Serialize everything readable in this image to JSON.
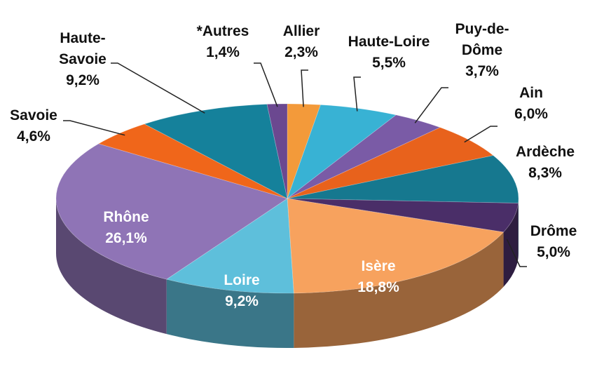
{
  "chart_data": {
    "type": "pie",
    "categories": [
      "Allier",
      "Haute-Loire",
      "Puy-de-Dôme",
      "Ain",
      "Ardèche",
      "Drôme",
      "Isère",
      "Loire",
      "Rhône",
      "Savoie",
      "Haute-Savoie",
      "*Autres"
    ],
    "values": [
      2.3,
      5.5,
      3.7,
      6.0,
      8.3,
      5.0,
      18.8,
      9.2,
      26.1,
      4.6,
      9.2,
      1.4
    ],
    "value_labels": [
      "2,3%",
      "5,5%",
      "3,7%",
      "6,0%",
      "8,3%",
      "5,0%",
      "18,8%",
      "9,2%",
      "26,1%",
      "4,6%",
      "9,2%",
      "1,4%"
    ],
    "colors": [
      "#f39a3a",
      "#38b2d4",
      "#7a5ba6",
      "#e8621c",
      "#16788f",
      "#4a2e68",
      "#f7a25e",
      "#5ebfdb",
      "#8f74b6",
      "#f0661a",
      "#15819b",
      "#6b4890"
    ]
  }
}
